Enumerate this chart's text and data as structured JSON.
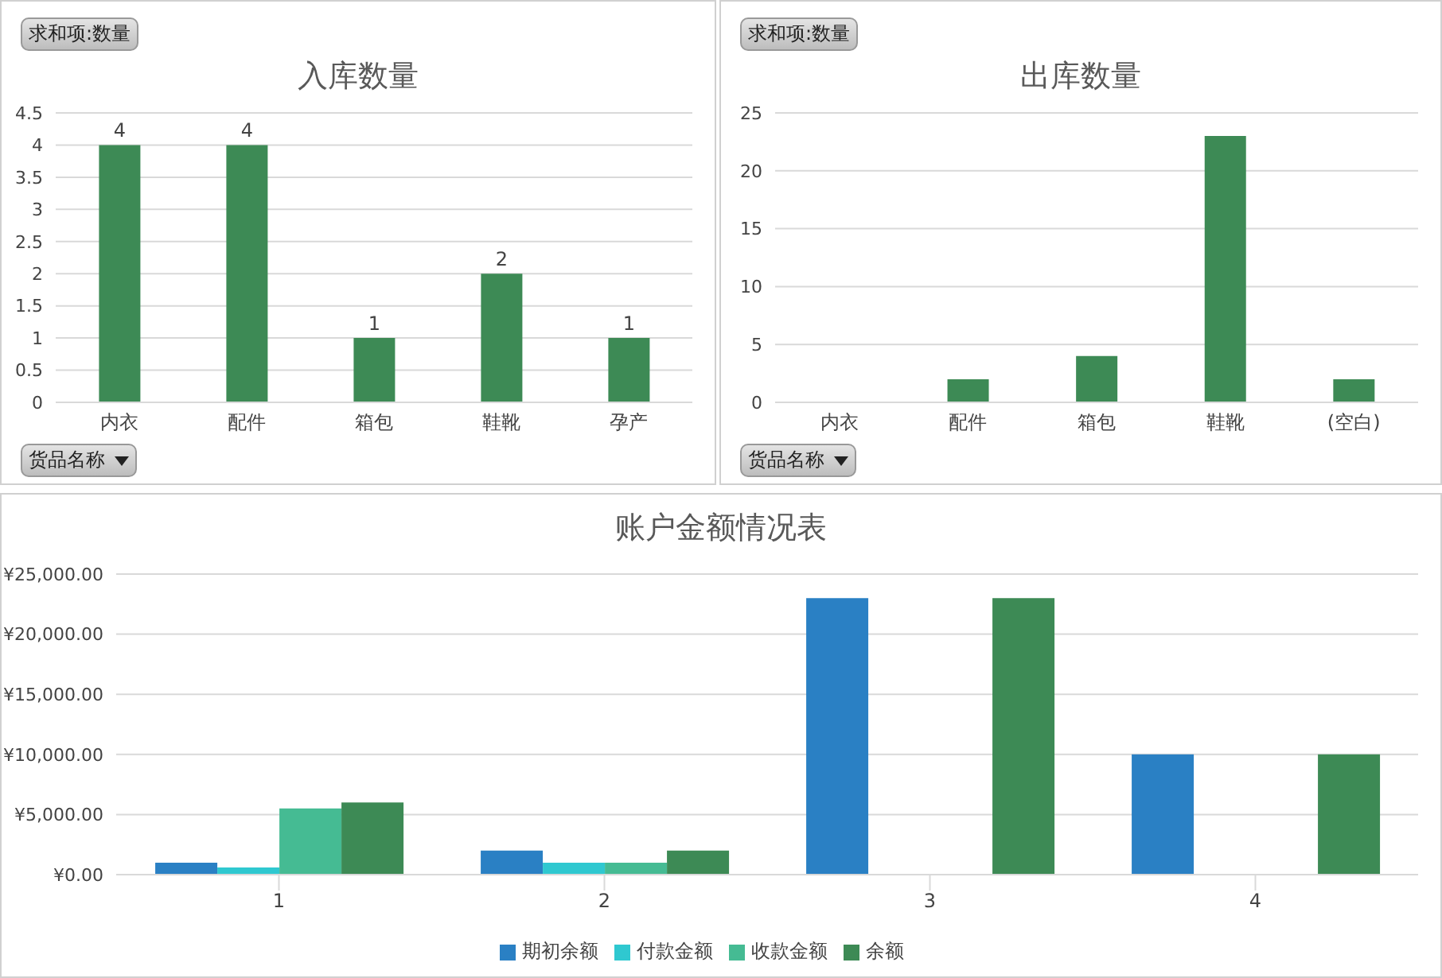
{
  "chart_data": [
    {
      "type": "bar",
      "title": "入库数量",
      "categories": [
        "内衣",
        "配件",
        "箱包",
        "鞋靴",
        "孕产"
      ],
      "values": [
        4,
        4,
        1,
        2,
        1
      ],
      "color": "#3d8a55",
      "ylim": [
        0,
        4.5
      ],
      "yticks": [
        0,
        0.5,
        1,
        1.5,
        2,
        2.5,
        3,
        3.5,
        4,
        4.5
      ],
      "grid": "y",
      "data_labels": true,
      "annotations": [
        "求和项:数量",
        "货品名称"
      ]
    },
    {
      "type": "bar",
      "title": "出库数量",
      "categories": [
        "内衣",
        "配件",
        "箱包",
        "鞋靴",
        "(空白)"
      ],
      "values": [
        null,
        2,
        4,
        23,
        2
      ],
      "color": "#3d8a55",
      "ylim": [
        0,
        25
      ],
      "yticks": [
        0,
        5,
        10,
        15,
        20,
        25
      ],
      "grid": "y",
      "annotations": [
        "求和项:数量",
        "货品名称"
      ]
    },
    {
      "type": "bar",
      "title": "账户金额情况表",
      "categories": [
        "1",
        "2",
        "3",
        "4"
      ],
      "ylim": [
        0,
        25000
      ],
      "yticks": [
        {
          "value": 0,
          "label": "¥0.00"
        },
        {
          "value": 5000,
          "label": "¥5,000.00"
        },
        {
          "value": 10000,
          "label": "¥10,000.00"
        },
        {
          "value": 15000,
          "label": "¥15,000.00"
        },
        {
          "value": 20000,
          "label": "¥20,000.00"
        },
        {
          "value": 25000,
          "label": "¥25,000.00"
        }
      ],
      "grid": "y",
      "legend": "bottom",
      "series": [
        {
          "name": "期初余额",
          "color": "#2a80c4",
          "values": [
            1000,
            2000,
            23000,
            10000
          ]
        },
        {
          "name": "付款金额",
          "color": "#2fc8d0",
          "values": [
            600,
            1000,
            null,
            null
          ]
        },
        {
          "name": "收款金额",
          "color": "#45bb93",
          "values": [
            5500,
            1000,
            null,
            null
          ]
        },
        {
          "name": "余额",
          "color": "#3d8a55",
          "values": [
            6000,
            2000,
            23000,
            10000
          ]
        }
      ]
    }
  ]
}
